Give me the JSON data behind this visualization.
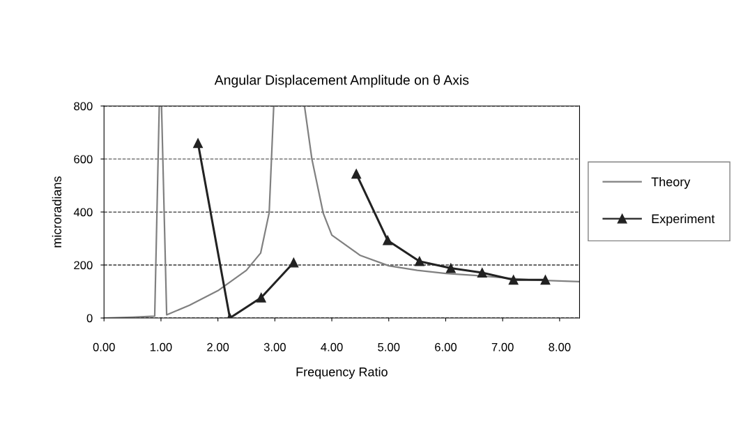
{
  "chart_data": {
    "type": "line",
    "title": "Angular Displacement Amplitude on θ Axis",
    "xlabel": "Frequency Ratio",
    "ylabel": "microradians",
    "series": [
      {
        "name": "Theory",
        "color": "#808080",
        "marker": "none",
        "x": [
          0,
          0.5,
          0.89,
          0.97,
          0.99,
          1.01,
          1.1,
          1.5,
          2.0,
          2.5,
          2.75,
          2.9,
          2.98,
          3.25,
          3.52,
          3.65,
          3.85,
          4.0,
          4.5,
          5.0,
          5.5,
          6.0,
          6.5,
          7.0,
          7.5,
          8.0,
          8.35
        ],
        "values": [
          0,
          3,
          7,
          800,
          null,
          800,
          12,
          48,
          103,
          180,
          245,
          397,
          800,
          null,
          800,
          600,
          395,
          313,
          236,
          197,
          180,
          168,
          161,
          152,
          144,
          140,
          137
        ]
      },
      {
        "name": "Experiment",
        "color": "#222222",
        "marker": "triangle",
        "x": [
          1.65,
          2.21,
          2.76,
          3.33,
          3.88,
          4.43,
          4.98,
          5.54,
          6.09,
          6.64,
          7.19,
          7.75
        ],
        "values": [
          660,
          0,
          77,
          209,
          null,
          544,
          293,
          214,
          188,
          171,
          144,
          144
        ]
      }
    ],
    "xlim": [
      0,
      8.35
    ],
    "xticks": [
      {
        "value": 0,
        "label": "0.00"
      },
      {
        "value": 1,
        "label": "1.00"
      },
      {
        "value": 2,
        "label": "2.00"
      },
      {
        "value": 3,
        "label": "3.00"
      },
      {
        "value": 4,
        "label": "4.00"
      },
      {
        "value": 5,
        "label": "5.00"
      },
      {
        "value": 6,
        "label": "6.00"
      },
      {
        "value": 7,
        "label": "7.00"
      },
      {
        "value": 8,
        "label": "8.00"
      }
    ],
    "ylim": [
      0,
      800
    ],
    "yticks": [
      0,
      200,
      400,
      600,
      800
    ],
    "grid": "y",
    "legend": "right",
    "line_style": "solid"
  }
}
